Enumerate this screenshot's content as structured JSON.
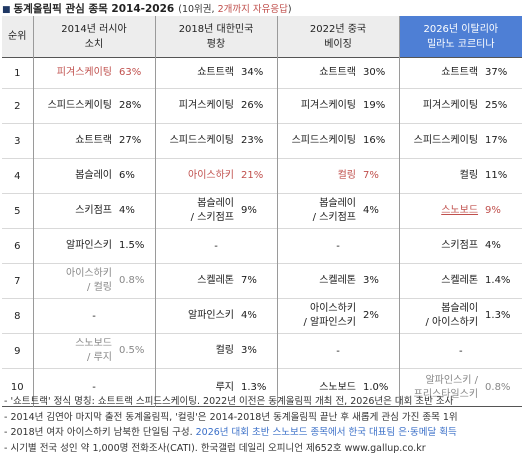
{
  "title": {
    "bullet": "■",
    "main": "동계올림픽 관심 종목 2014-2026",
    "sub_prefix": "(10위권, ",
    "sub_highlight": "2개까지 자유응답",
    "sub_suffix": ")"
  },
  "header": {
    "rank": "순위",
    "col2014": [
      "2014년 러시아",
      "소치"
    ],
    "col2018": [
      "2018년 대한민국",
      "평창"
    ],
    "col2022": [
      "2022년 중국",
      "베이징"
    ],
    "col2026": [
      "2026년 이탈리아",
      "밀라노 코르티나"
    ]
  },
  "rows": [
    {
      "rank": "1",
      "c2014": {
        "name": "피겨스케이팅",
        "val": "63%",
        "color": "red"
      },
      "c2018": {
        "name": "쇼트트랙",
        "val": "34%"
      },
      "c2022": {
        "name": "쇼트트랙",
        "val": "30%"
      },
      "c2026": {
        "name": "쇼트트랙",
        "val": "37%"
      }
    },
    {
      "rank": "2",
      "c2014": {
        "name": "스피드스케이팅",
        "val": "28%"
      },
      "c2018": {
        "name": "피겨스케이팅",
        "val": "26%"
      },
      "c2022": {
        "name": "피겨스케이팅",
        "val": "19%"
      },
      "c2026": {
        "name": "피겨스케이팅",
        "val": "25%"
      }
    },
    {
      "rank": "3",
      "c2014": {
        "name": "쇼트트랙",
        "val": "27%"
      },
      "c2018": {
        "name": "스피드스케이팅",
        "val": "23%"
      },
      "c2022": {
        "name": "스피드스케이팅",
        "val": "16%"
      },
      "c2026": {
        "name": "스피드스케이팅",
        "val": "17%"
      }
    },
    {
      "rank": "4",
      "c2014": {
        "name": "봅슬레이",
        "val": "6%"
      },
      "c2018": {
        "name": "아이스하키",
        "val": "21%",
        "color": "red"
      },
      "c2022": {
        "name": "컬링",
        "val": "7%",
        "color": "red"
      },
      "c2026": {
        "name": "컬링",
        "val": "11%"
      }
    },
    {
      "rank": "5",
      "c2014": {
        "name": "스키점프",
        "val": "4%"
      },
      "c2018": {
        "name": "봅슬레이",
        "name2": "/ 스키점프",
        "val": "9%"
      },
      "c2022": {
        "name": "봅슬레이",
        "name2": "/ 스키점프",
        "val": "4%"
      },
      "c2026": {
        "name": "스노보드",
        "val": "9%",
        "color": "red",
        "underline": true
      }
    },
    {
      "rank": "6",
      "c2014": {
        "name": "알파인스키",
        "val": "1.5%"
      },
      "c2018": {
        "dash": "-"
      },
      "c2022": {
        "dash": "-"
      },
      "c2026": {
        "name": "스키점프",
        "val": "4%"
      }
    },
    {
      "rank": "7",
      "c2014": {
        "name": "아이스하키",
        "name2": "/ 컬링",
        "val": "0.8%",
        "color": "gray"
      },
      "c2018": {
        "name": "스켈레톤",
        "val": "7%"
      },
      "c2022": {
        "name": "스켈레톤",
        "val": "3%"
      },
      "c2026": {
        "name": "스켈레톤",
        "val": "1.4%"
      }
    },
    {
      "rank": "8",
      "c2014": {
        "dash": "-"
      },
      "c2018": {
        "name": "알파인스키",
        "val": "4%"
      },
      "c2022": {
        "name": "아이스하키",
        "name2": "/ 알파인스키",
        "val": "2%"
      },
      "c2026": {
        "name": "봅슬레이",
        "name2": "/ 아이스하키",
        "val": "1.3%"
      }
    },
    {
      "rank": "9",
      "c2014": {
        "name": "스노보드",
        "name2": "/ 루지",
        "val": "0.5%",
        "color": "gray"
      },
      "c2018": {
        "name": "컬링",
        "val": "3%"
      },
      "c2022": {
        "dash": "-"
      },
      "c2026": {
        "dash": "-"
      }
    },
    {
      "rank": "10",
      "c2014": {
        "dash": "-"
      },
      "c2018": {
        "name": "루지",
        "val": "1.3%"
      },
      "c2022": {
        "name": "스노보드",
        "val": "1.0%"
      },
      "c2026": {
        "name": "알파인스키 /",
        "name2": "프리스타일스키",
        "val": "0.8%",
        "color": "gray"
      }
    }
  ],
  "notes": [
    {
      "text": "- '쇼트트랙' 정식 명칭: 쇼트트랙 스피드스케이팅. 2022년 이전은 동계올림픽 개최 전, 2026년은 대회 초반 조사"
    },
    {
      "text": "- 2014년 김연아 마지막 출전 동계올림픽, '컬링'은 2014-2018년 동계올림픽 끝난 후 새롭게 관심 가진 종목 1위"
    },
    {
      "text": "- 2018년 여자 아이스하키 남북한 단일팀 구성. ",
      "blue": "2026년 대회 초반 스노보드 종목에서 한국 대표팀 은·동메달 획득"
    },
    {
      "text": "- 시기별 전국 성인 약 1,000명 전화조사(CATI). 한국갤럽 데일리 오피니언 제652호 www.gallup.co.kr"
    }
  ]
}
